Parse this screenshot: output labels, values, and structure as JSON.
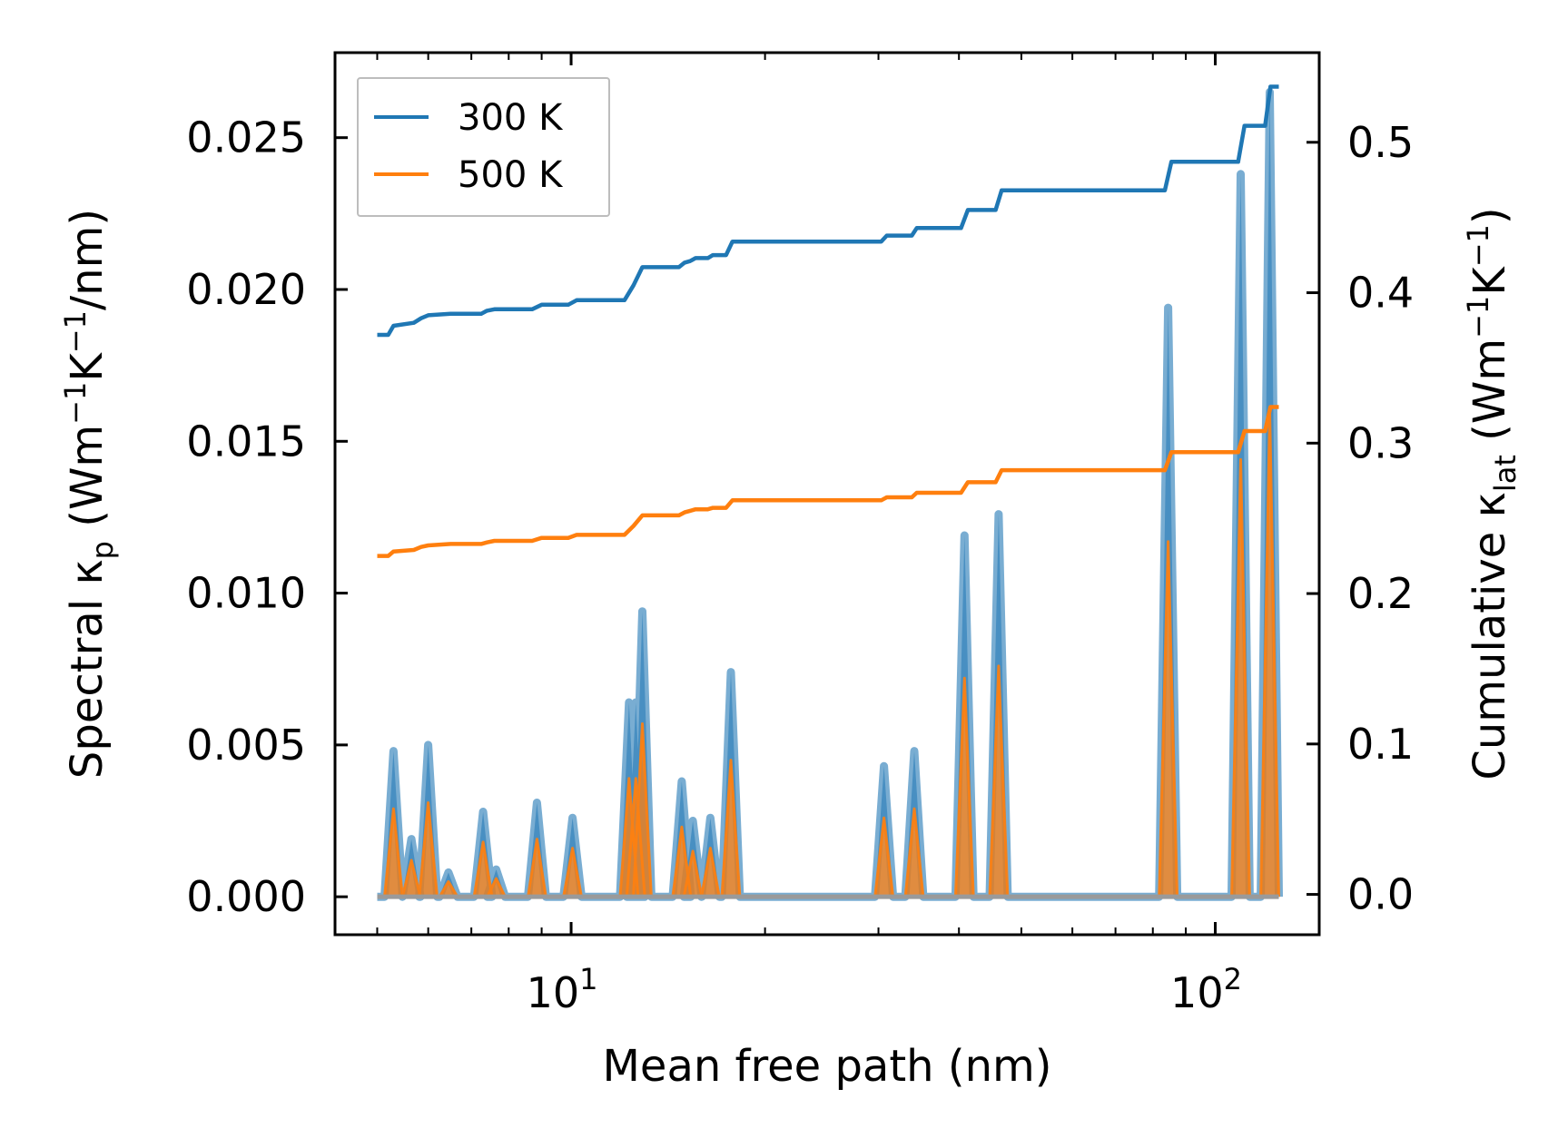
{
  "chart_data": {
    "type": "line",
    "xscale": "log",
    "xlabel": "Mean free path (nm)",
    "ylabel_left": {
      "main": "Spectral κ",
      "sub": "p",
      "unit_pre": " (Wm",
      "sup1": "−1",
      "mid": "K",
      "sup2": "−1",
      "post": "/nm)"
    },
    "ylabel_right": {
      "main": "Cumulative κ",
      "sub": "lat",
      "unit_pre": " (Wm",
      "sup1": "−1",
      "mid": "K",
      "sup2": "−1",
      "post": ")"
    },
    "xlim": [
      4.3,
      145
    ],
    "ylim_left": [
      -0.00125,
      0.0278
    ],
    "ylim_right": [
      -0.0268,
      0.5596
    ],
    "x_ticks_major": [
      {
        "value": 10,
        "base": "10",
        "exp": "1"
      },
      {
        "value": 100,
        "base": "10",
        "exp": "2"
      }
    ],
    "x_ticks_minor": [
      5,
      6,
      7,
      8,
      9,
      20,
      30,
      40,
      50,
      60,
      70,
      80,
      90
    ],
    "y_ticks_left": [
      {
        "value": 0.0,
        "label": "0.000"
      },
      {
        "value": 0.005,
        "label": "0.005"
      },
      {
        "value": 0.01,
        "label": "0.010"
      },
      {
        "value": 0.015,
        "label": "0.015"
      },
      {
        "value": 0.02,
        "label": "0.020"
      },
      {
        "value": 0.025,
        "label": "0.025"
      }
    ],
    "y_ticks_right": [
      {
        "value": 0.0,
        "label": "0.0"
      },
      {
        "value": 0.1,
        "label": "0.1"
      },
      {
        "value": 0.2,
        "label": "0.2"
      },
      {
        "value": 0.3,
        "label": "0.3"
      },
      {
        "value": 0.4,
        "label": "0.4"
      },
      {
        "value": 0.5,
        "label": "0.5"
      }
    ],
    "legend": {
      "position": "upper-left",
      "entries": [
        {
          "label": "300 K",
          "color": "#1f77b4"
        },
        {
          "label": "500 K",
          "color": "#ff7f0e"
        }
      ]
    },
    "series": [
      {
        "name": "300 K",
        "color": "#1f77b4",
        "spectral_peaks": [
          {
            "x": 5.3,
            "y": 0.0048
          },
          {
            "x": 5.65,
            "y": 0.0019
          },
          {
            "x": 6.0,
            "y": 0.005
          },
          {
            "x": 6.45,
            "y": 0.0008
          },
          {
            "x": 7.3,
            "y": 0.0028
          },
          {
            "x": 7.65,
            "y": 0.0009
          },
          {
            "x": 8.85,
            "y": 0.0031
          },
          {
            "x": 10.05,
            "y": 0.0026
          },
          {
            "x": 12.3,
            "y": 0.0064
          },
          {
            "x": 12.6,
            "y": 0.0064
          },
          {
            "x": 12.9,
            "y": 0.0094
          },
          {
            "x": 14.85,
            "y": 0.0038
          },
          {
            "x": 15.45,
            "y": 0.0025
          },
          {
            "x": 16.45,
            "y": 0.0026
          },
          {
            "x": 17.7,
            "y": 0.0074
          },
          {
            "x": 30.6,
            "y": 0.0043
          },
          {
            "x": 34.1,
            "y": 0.0048
          },
          {
            "x": 40.8,
            "y": 0.0119
          },
          {
            "x": 46.1,
            "y": 0.0126
          },
          {
            "x": 84.5,
            "y": 0.0194
          },
          {
            "x": 109.5,
            "y": 0.0238
          },
          {
            "x": 121.5,
            "y": 0.0265
          }
        ],
        "cumulative": [
          [
            5.0,
            0.372
          ],
          [
            5.2,
            0.372
          ],
          [
            5.3,
            0.378
          ],
          [
            5.7,
            0.38
          ],
          [
            5.85,
            0.383
          ],
          [
            6.0,
            0.385
          ],
          [
            6.5,
            0.386
          ],
          [
            7.25,
            0.386
          ],
          [
            7.4,
            0.388
          ],
          [
            7.6,
            0.389
          ],
          [
            8.7,
            0.389
          ],
          [
            9.0,
            0.392
          ],
          [
            9.9,
            0.392
          ],
          [
            10.2,
            0.395
          ],
          [
            12.1,
            0.395
          ],
          [
            12.5,
            0.405
          ],
          [
            12.9,
            0.417
          ],
          [
            14.7,
            0.417
          ],
          [
            15.0,
            0.42
          ],
          [
            15.3,
            0.421
          ],
          [
            15.6,
            0.423
          ],
          [
            16.3,
            0.423
          ],
          [
            16.6,
            0.425
          ],
          [
            17.4,
            0.425
          ],
          [
            17.8,
            0.434
          ],
          [
            30.3,
            0.434
          ],
          [
            30.9,
            0.438
          ],
          [
            33.8,
            0.438
          ],
          [
            34.4,
            0.443
          ],
          [
            40.3,
            0.443
          ],
          [
            41.3,
            0.455
          ],
          [
            45.6,
            0.455
          ],
          [
            46.6,
            0.468
          ],
          [
            83.5,
            0.468
          ],
          [
            85.5,
            0.487
          ],
          [
            108.5,
            0.487
          ],
          [
            111.0,
            0.511
          ],
          [
            119.5,
            0.511
          ],
          [
            121.8,
            0.537
          ],
          [
            125.5,
            0.537
          ]
        ]
      },
      {
        "name": "500 K",
        "color": "#ff7f0e",
        "spectral_peaks": [
          {
            "x": 5.3,
            "y": 0.0029
          },
          {
            "x": 5.65,
            "y": 0.0012
          },
          {
            "x": 6.0,
            "y": 0.0031
          },
          {
            "x": 6.45,
            "y": 0.0005
          },
          {
            "x": 7.3,
            "y": 0.0018
          },
          {
            "x": 7.65,
            "y": 0.0006
          },
          {
            "x": 8.85,
            "y": 0.0019
          },
          {
            "x": 10.05,
            "y": 0.0016
          },
          {
            "x": 12.3,
            "y": 0.0039
          },
          {
            "x": 12.6,
            "y": 0.0039
          },
          {
            "x": 12.9,
            "y": 0.0057
          },
          {
            "x": 14.85,
            "y": 0.0023
          },
          {
            "x": 15.45,
            "y": 0.0015
          },
          {
            "x": 16.45,
            "y": 0.0016
          },
          {
            "x": 17.7,
            "y": 0.0045
          },
          {
            "x": 30.6,
            "y": 0.0026
          },
          {
            "x": 34.1,
            "y": 0.0029
          },
          {
            "x": 40.8,
            "y": 0.0072
          },
          {
            "x": 46.1,
            "y": 0.0076
          },
          {
            "x": 84.5,
            "y": 0.0117
          },
          {
            "x": 109.5,
            "y": 0.0144
          },
          {
            "x": 121.5,
            "y": 0.016
          }
        ],
        "cumulative": [
          [
            5.0,
            0.225
          ],
          [
            5.2,
            0.225
          ],
          [
            5.3,
            0.228
          ],
          [
            5.7,
            0.229
          ],
          [
            5.85,
            0.231
          ],
          [
            6.0,
            0.232
          ],
          [
            6.5,
            0.233
          ],
          [
            7.25,
            0.233
          ],
          [
            7.4,
            0.234
          ],
          [
            7.6,
            0.235
          ],
          [
            8.7,
            0.235
          ],
          [
            9.0,
            0.237
          ],
          [
            9.9,
            0.237
          ],
          [
            10.2,
            0.239
          ],
          [
            12.1,
            0.239
          ],
          [
            12.5,
            0.245
          ],
          [
            12.9,
            0.252
          ],
          [
            14.7,
            0.252
          ],
          [
            15.0,
            0.254
          ],
          [
            15.3,
            0.255
          ],
          [
            15.6,
            0.256
          ],
          [
            16.3,
            0.256
          ],
          [
            16.6,
            0.257
          ],
          [
            17.4,
            0.257
          ],
          [
            17.8,
            0.262
          ],
          [
            30.3,
            0.262
          ],
          [
            30.9,
            0.264
          ],
          [
            33.8,
            0.264
          ],
          [
            34.4,
            0.267
          ],
          [
            40.3,
            0.267
          ],
          [
            41.3,
            0.274
          ],
          [
            45.6,
            0.274
          ],
          [
            46.6,
            0.282
          ],
          [
            83.5,
            0.282
          ],
          [
            85.5,
            0.294
          ],
          [
            108.5,
            0.294
          ],
          [
            111.0,
            0.308
          ],
          [
            119.5,
            0.308
          ],
          [
            121.8,
            0.324
          ],
          [
            125.5,
            0.324
          ]
        ]
      }
    ]
  }
}
